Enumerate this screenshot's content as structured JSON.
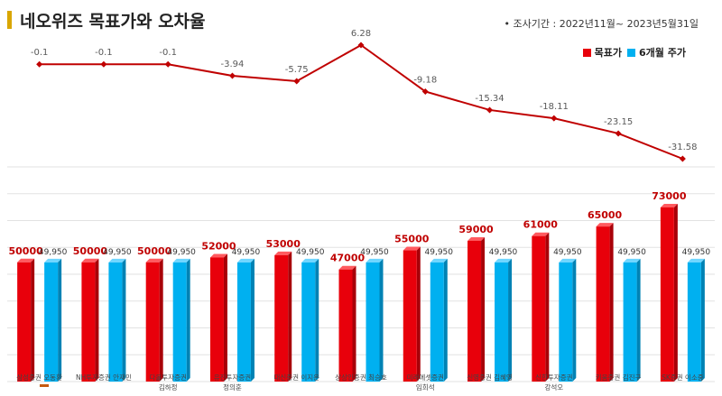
{
  "title": "네오위즈 목표가와 오차율",
  "period": "• 조사기간 : 2022년11월~ 2023년5월31일",
  "colors": {
    "target": "#e8000b",
    "price": "#00b0f0",
    "line": "#c00000",
    "accent": "#d9a600"
  },
  "chart_data": [
    {
      "type": "line",
      "name": "오차율",
      "categories": [
        "삼성증권 오동환",
        "NH투자증권 안재민",
        "다올투자증권 김하정",
        "유진투자증권 정의훈",
        "대신증권 이지은",
        "상상인증권 최승호",
        "미래에셋증권 임희석",
        "신영증권 김혜영",
        "신한투자증권 강석오",
        "키움증권 김진구",
        "SK증권 이소중"
      ],
      "values": [
        -0.1,
        -0.1,
        -0.1,
        -3.94,
        -5.75,
        6.28,
        -9.18,
        -15.34,
        -18.11,
        -23.15,
        -31.58
      ],
      "value_labels": [
        "-0.1",
        "-0.1",
        "-0.1",
        "-3.94",
        "-5.75",
        "6.28",
        "-9.18",
        "-15.34",
        "-18.11",
        "-23.15",
        "-31.58"
      ]
    },
    {
      "type": "bar",
      "categories": [
        "삼성증권 오동환",
        "NH투자증권 안재민",
        "다올투자증권 김하정",
        "유진투자증권 정의훈",
        "대신증권 이지은",
        "상상인증권 최승호",
        "미래에셋증권 임희석",
        "신영증권 김혜영",
        "신한투자증권 강석오",
        "키움증권 김진구",
        "SK증권 이소중"
      ],
      "category_labels": [
        [
          "삼성증권 오동환"
        ],
        [
          "NH투자증권 안재민"
        ],
        [
          "다올투자증권",
          "김하정"
        ],
        [
          "유진투자증권",
          "정의훈"
        ],
        [
          "대신증권 이지은"
        ],
        [
          "상상인증권 최승호"
        ],
        [
          "미래에셋증권",
          "임희석"
        ],
        [
          "신영증권 김혜영"
        ],
        [
          "신한투자증권",
          "강석오"
        ],
        [
          "키움증권 김진구"
        ],
        [
          "SK증권 이소중"
        ]
      ],
      "series": [
        {
          "name": "목표가",
          "values": [
            50000,
            50000,
            50000,
            52000,
            53000,
            47000,
            55000,
            59000,
            61000,
            65000,
            73000
          ],
          "labels": [
            "50000",
            "50000",
            "50000",
            "52000",
            "53000",
            "47000",
            "55000",
            "59000",
            "61000",
            "65000",
            "73000"
          ]
        },
        {
          "name": "6개월 주가",
          "values": [
            49950,
            49950,
            49950,
            49950,
            49950,
            49950,
            49950,
            49950,
            49950,
            49950,
            49950
          ],
          "labels": [
            "49,950",
            "49,950",
            "49,950",
            "49,950",
            "49,950",
            "49,950",
            "49,950",
            "49,950",
            "49,950",
            "49,950",
            "49,950"
          ]
        }
      ],
      "ylim": [
        0,
        90000
      ]
    }
  ]
}
